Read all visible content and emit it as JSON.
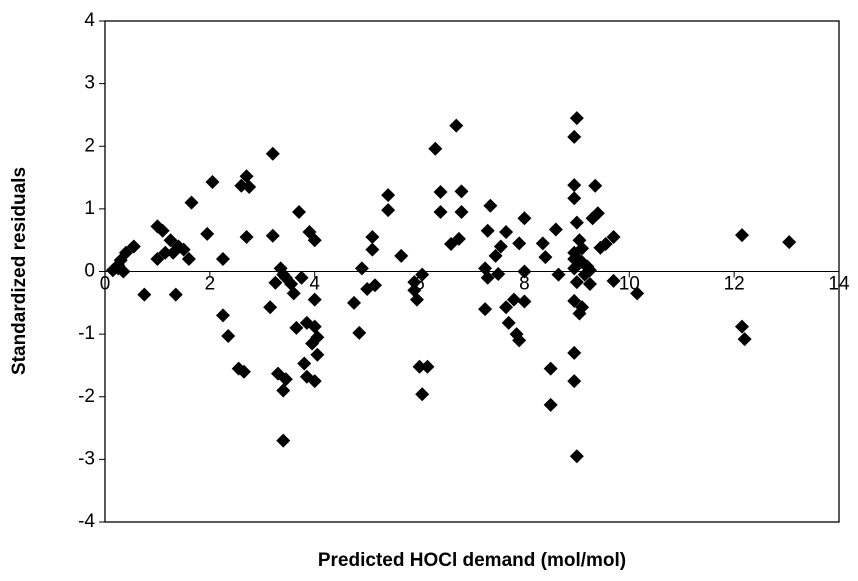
{
  "chart_data": {
    "type": "scatter",
    "x_label": "Predicted HOCl demand (mol/mol)",
    "y_label": "Standardized residuals",
    "color": "#000000",
    "xlim": [
      0,
      14
    ],
    "xticks": [
      0,
      2,
      4,
      6,
      8,
      10,
      12,
      14
    ],
    "ylim": [
      -4,
      4
    ],
    "yticks": [
      -4,
      -3,
      -2,
      -1,
      0,
      1,
      2,
      3,
      4
    ],
    "grid": false,
    "x": [
      0.15,
      0.25,
      0.3,
      0.4,
      0.55,
      0.25,
      0.35,
      0.75,
      1.0,
      1.1,
      1.0,
      1.15,
      1.25,
      1.3,
      1.4,
      1.5,
      1.6,
      1.35,
      1.65,
      1.95,
      2.05,
      2.25,
      2.25,
      2.35,
      2.55,
      2.65,
      2.6,
      2.7,
      2.75,
      2.7,
      3.15,
      3.2,
      3.2,
      3.25,
      3.35,
      3.4,
      3.45,
      3.3,
      3.4,
      3.45,
      3.4,
      3.55,
      3.6,
      3.65,
      3.7,
      3.75,
      3.8,
      3.85,
      3.85,
      3.9,
      3.95,
      4.0,
      4.0,
      4.0,
      4.05,
      4.05,
      4.0,
      4.75,
      4.85,
      4.9,
      5.0,
      5.1,
      5.1,
      5.15,
      5.4,
      5.4,
      5.65,
      5.9,
      5.9,
      5.95,
      6.0,
      6.05,
      6.05,
      6.15,
      6.3,
      6.4,
      6.4,
      6.6,
      6.7,
      6.75,
      6.8,
      6.8,
      7.25,
      7.3,
      7.25,
      7.35,
      7.3,
      7.45,
      7.5,
      7.55,
      7.65,
      7.65,
      7.7,
      7.8,
      7.85,
      7.9,
      7.9,
      8.0,
      8.0,
      8.0,
      8.35,
      8.4,
      8.5,
      8.5,
      8.6,
      8.65,
      8.95,
      8.95,
      9.0,
      8.95,
      8.95,
      8.95,
      8.95,
      9.0,
      8.95,
      8.95,
      8.95,
      9.0,
      9.0,
      9.05,
      9.05,
      9.1,
      9.05,
      9.1,
      9.1,
      9.15,
      9.2,
      9.25,
      9.25,
      9.3,
      9.35,
      9.4,
      9.45,
      9.55,
      9.7,
      9.7,
      10.15,
      12.15,
      12.15,
      12.2,
      13.05
    ],
    "values": [
      0.02,
      0.1,
      0.18,
      0.3,
      0.4,
      0.05,
      0,
      -0.37,
      0.72,
      0.65,
      0.2,
      0.3,
      0.5,
      0.3,
      0.4,
      0.35,
      0.2,
      -0.37,
      1.1,
      0.6,
      1.43,
      0.2,
      -0.7,
      -1.03,
      -1.55,
      -1.6,
      1.37,
      1.52,
      1.35,
      0.55,
      -0.57,
      1.88,
      0.57,
      -0.18,
      0.05,
      -0.05,
      -0.1,
      -1.63,
      -1.9,
      -1.72,
      -2.7,
      -0.2,
      -0.35,
      -0.9,
      0.95,
      -0.1,
      -1.47,
      -1.68,
      -0.82,
      0.63,
      -1.15,
      -0.45,
      0.5,
      -1.75,
      -1.33,
      -1.05,
      -0.88,
      -0.5,
      -0.98,
      0.05,
      -0.28,
      0.55,
      0.35,
      -0.22,
      1.22,
      0.98,
      0.25,
      -0.17,
      -0.3,
      -0.45,
      -1.52,
      -0.05,
      -1.96,
      -1.52,
      1.96,
      1.27,
      0.95,
      0.44,
      2.33,
      0.52,
      1.28,
      0.95,
      0.05,
      0.65,
      -0.6,
      1.05,
      -0.1,
      0.25,
      -0.04,
      0.4,
      0.63,
      -0.57,
      -0.82,
      -0.45,
      -1.0,
      -1.1,
      0.45,
      0.85,
      0,
      -0.48,
      0.45,
      0.23,
      -1.55,
      -2.13,
      0.67,
      -0.05,
      1.38,
      2.15,
      2.45,
      1.17,
      0.3,
      0.2,
      0.05,
      -0.17,
      -0.47,
      -1.3,
      -1.75,
      -2.95,
      0.78,
      0.5,
      0.18,
      0.37,
      -0.67,
      -0.57,
      0.15,
      -0.05,
      0.08,
      -0.2,
      0.02,
      0.85,
      1.37,
      0.93,
      0.38,
      0.44,
      0.55,
      -0.15,
      -0.35,
      0.58,
      -0.88,
      -1.08,
      0.47
    ]
  }
}
